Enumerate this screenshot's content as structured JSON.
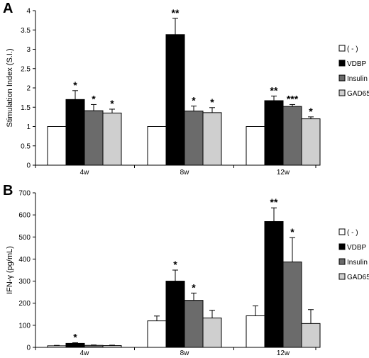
{
  "colors": {
    "neg": "#ffffff",
    "vdbp": "#000000",
    "insulin": "#6b6b6b",
    "gad65": "#cfcfcf",
    "stroke": "#000000"
  },
  "chart_data": [
    {
      "panel_label": "A",
      "type": "bar",
      "ylabel": "Stimulation Index (S.I.)",
      "ylim": [
        0,
        4
      ],
      "yticks": [
        "0",
        "0.5",
        "1",
        "1.5",
        "2",
        "2.5",
        "3",
        "3.5",
        "4"
      ],
      "ytick_values": [
        0,
        0.5,
        1,
        1.5,
        2,
        2.5,
        3,
        3.5,
        4
      ],
      "categories": [
        "4w",
        "8w",
        "12w"
      ],
      "legend_position": "right",
      "series": [
        {
          "name": "( - )",
          "color_key": "neg",
          "values": [
            1.0,
            1.0,
            1.0
          ],
          "errors": [
            0,
            0,
            0
          ],
          "sig": [
            "",
            "",
            ""
          ]
        },
        {
          "name": "VDBP",
          "color_key": "vdbp",
          "values": [
            1.7,
            3.38,
            1.67
          ],
          "errors": [
            0.23,
            0.42,
            0.12
          ],
          "sig": [
            "*",
            "**",
            "**"
          ]
        },
        {
          "name": "Insulin",
          "color_key": "insulin",
          "values": [
            1.41,
            1.4,
            1.52
          ],
          "errors": [
            0.16,
            0.13,
            0.05
          ],
          "sig": [
            "*",
            "*",
            "***"
          ]
        },
        {
          "name": "GAD65",
          "color_key": "gad65",
          "values": [
            1.35,
            1.36,
            1.2
          ],
          "errors": [
            0.1,
            0.13,
            0.05
          ],
          "sig": [
            "*",
            "*",
            "*"
          ]
        }
      ]
    },
    {
      "panel_label": "B",
      "type": "bar",
      "ylabel": "IFN-γ (pg/mL)",
      "ylim": [
        0,
        700
      ],
      "yticks": [
        "0",
        "100",
        "200",
        "300",
        "400",
        "500",
        "600",
        "700"
      ],
      "ytick_values": [
        0,
        100,
        200,
        300,
        400,
        500,
        600,
        700
      ],
      "categories": [
        "4w",
        "8w",
        "12w"
      ],
      "legend_position": "right",
      "series": [
        {
          "name": "( - )",
          "color_key": "neg",
          "values": [
            7,
            120,
            143
          ],
          "errors": [
            2,
            22,
            45
          ],
          "sig": [
            "",
            "",
            ""
          ]
        },
        {
          "name": "VDBP",
          "color_key": "vdbp",
          "values": [
            18,
            300,
            570
          ],
          "errors": [
            3,
            50,
            62
          ],
          "sig": [
            "*",
            "*",
            "**"
          ]
        },
        {
          "name": "Insulin",
          "color_key": "insulin",
          "values": [
            9,
            213,
            387
          ],
          "errors": [
            2,
            33,
            110
          ],
          "sig": [
            "",
            "*",
            "*"
          ]
        },
        {
          "name": "GAD65",
          "color_key": "gad65",
          "values": [
            8,
            133,
            108
          ],
          "errors": [
            2,
            35,
            63
          ],
          "sig": [
            "",
            "",
            ""
          ]
        }
      ]
    }
  ]
}
